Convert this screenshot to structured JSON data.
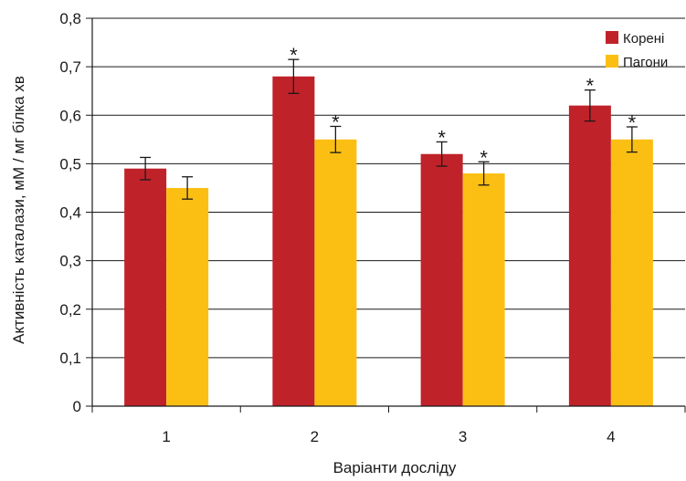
{
  "chart_data": {
    "type": "bar",
    "title": "",
    "xlabel": "Варіанти досліду",
    "ylabel": "Активність каталази, мМ / мг білка хв",
    "categories": [
      "1",
      "2",
      "3",
      "4"
    ],
    "ylim": [
      0,
      0.8
    ],
    "yticks": [
      "0",
      "0,1",
      "0,2",
      "0,3",
      "0,4",
      "0,5",
      "0,6",
      "0,7",
      "0,8"
    ],
    "grid": true,
    "legend_position": "top-right",
    "significance_mark": "*",
    "series": [
      {
        "name": "Корені",
        "color": "#c0222a",
        "values": [
          0.49,
          0.68,
          0.52,
          0.62
        ],
        "errors": [
          0.023,
          0.035,
          0.025,
          0.032
        ],
        "significant": [
          false,
          true,
          true,
          true
        ]
      },
      {
        "name": "Пагони",
        "color": "#fbbf14",
        "values": [
          0.45,
          0.55,
          0.48,
          0.55
        ],
        "errors": [
          0.023,
          0.027,
          0.024,
          0.026
        ],
        "significant": [
          false,
          true,
          true,
          true
        ]
      }
    ]
  }
}
